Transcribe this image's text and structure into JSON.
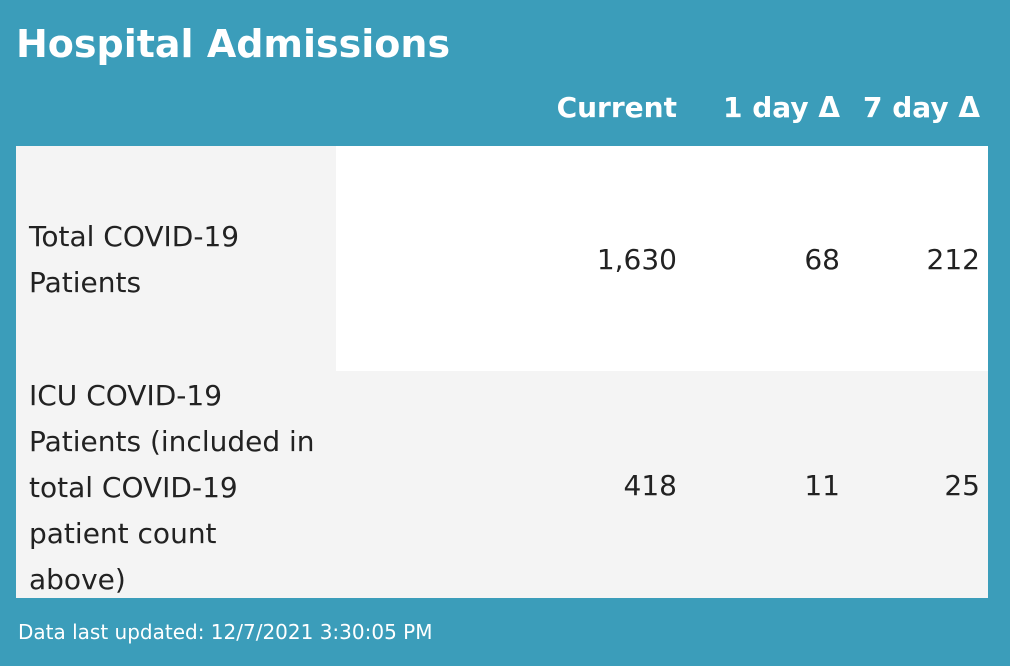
{
  "title": "Hospital Admissions",
  "columns": {
    "current": "Current",
    "one_day": "1 day Δ",
    "seven_day": "7 day Δ"
  },
  "rows": [
    {
      "label": "Total COVID-19 Patients",
      "current": "1,630",
      "one_day": "68",
      "seven_day": "212"
    },
    {
      "label": "ICU COVID-19 Patients (included in total COVID-19 patient count above)",
      "current": "418",
      "one_day": "11",
      "seven_day": "25"
    }
  ],
  "footer": "Data last updated: 12/7/2021 3:30:05 PM",
  "colors": {
    "background": "#3b9dba",
    "row_white": "#ffffff",
    "row_gray": "#f4f4f4"
  }
}
